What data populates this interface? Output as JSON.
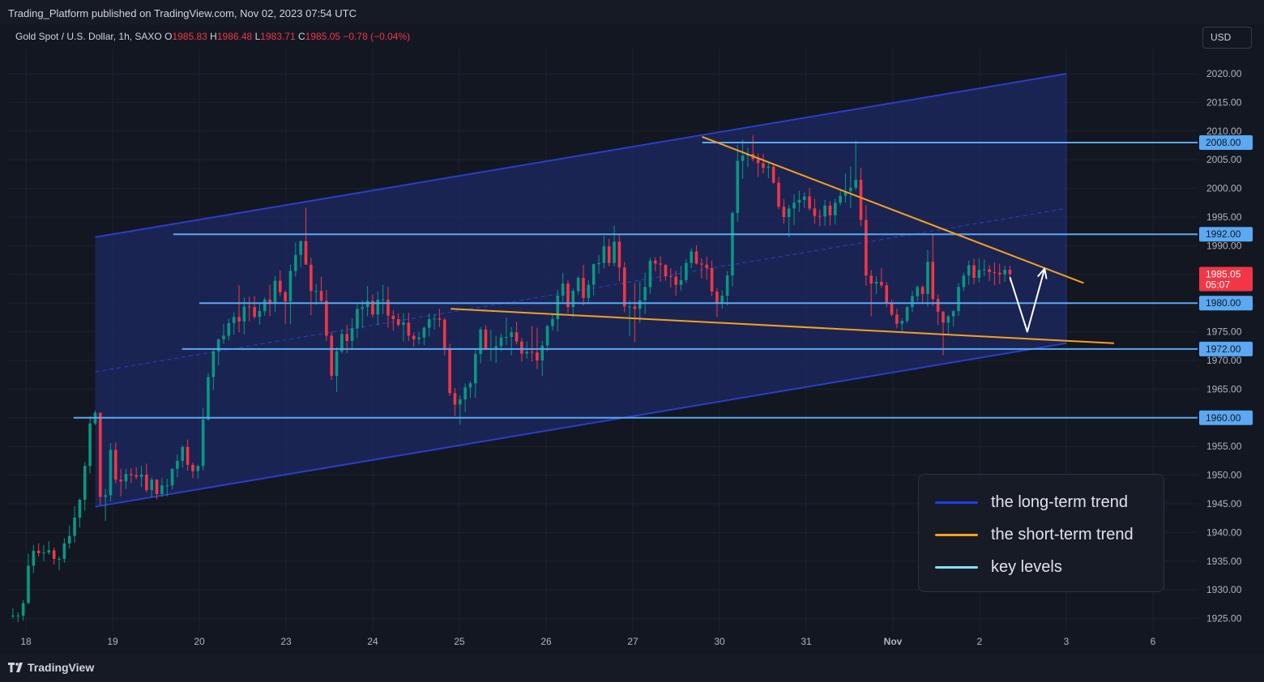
{
  "header": {
    "published": "Trading_Platform published on TradingView.com, Nov 02, 2023 07:54 UTC"
  },
  "symbol": {
    "name": "Gold Spot / U.S. Dollar, 1h, SAXO",
    "o_label": "O",
    "o_value": "1985.83",
    "h_label": "H",
    "h_value": "1986.48",
    "l_label": "L",
    "l_value": "1983.71",
    "c_label": "C",
    "c_value": "1985.05",
    "change": "−0.78 (−0.04%)"
  },
  "currency_button": "USD",
  "footer": {
    "brand": "TradingView"
  },
  "legend": {
    "items": [
      {
        "label": "the long-term trend",
        "color": "#1e3ee6"
      },
      {
        "label": "the short-term trend",
        "color": "#f7a01c"
      },
      {
        "label": "key levels",
        "color": "#7fe4f5"
      }
    ]
  },
  "colors": {
    "up": "#089981",
    "down": "#f23645",
    "channel": "#2a3ec8",
    "channel_fill": "#1d2a66",
    "short_trend": "#f7a01c",
    "key_level": "#5aa9f2",
    "arrow": "#ffffff",
    "price_tag": "#f23645",
    "level_tag": "#5aa9f2"
  },
  "chart_data": {
    "type": "candlestick",
    "instrument": "Gold Spot / U.S. Dollar",
    "timeframe": "1h",
    "ylim": [
      1923,
      2025
    ],
    "y_ticks": [
      "2020.00",
      "2015.00",
      "2010.00",
      "2005.00",
      "2000.00",
      "1995.00",
      "1990.00",
      "1985.00",
      "1980.00",
      "1975.00",
      "1970.00",
      "1965.00",
      "1960.00",
      "1955.00",
      "1950.00",
      "1945.00",
      "1940.00",
      "1935.00",
      "1930.00",
      "1925.00"
    ],
    "x_ticks": [
      {
        "label": "18",
        "day": 0
      },
      {
        "label": "19",
        "day": 1
      },
      {
        "label": "20",
        "day": 2
      },
      {
        "label": "23",
        "day": 3
      },
      {
        "label": "24",
        "day": 4
      },
      {
        "label": "25",
        "day": 5
      },
      {
        "label": "26",
        "day": 6
      },
      {
        "label": "27",
        "day": 7
      },
      {
        "label": "30",
        "day": 8
      },
      {
        "label": "31",
        "day": 9
      },
      {
        "label": "Nov",
        "day": 10
      },
      {
        "label": "2",
        "day": 11
      },
      {
        "label": "3",
        "day": 12
      },
      {
        "label": "6",
        "day": 13
      }
    ],
    "key_levels": [
      {
        "value": 2008.0,
        "label": "2008.00",
        "from_day": 7.8
      },
      {
        "value": 1992.0,
        "label": "1992.00",
        "from_day": 1.7
      },
      {
        "value": 1980.0,
        "label": "1980.00",
        "from_day": 2.0
      },
      {
        "value": 1972.0,
        "label": "1972.00",
        "from_day": 1.8
      },
      {
        "value": 1960.0,
        "label": "1960.00",
        "from_day": 0.55
      }
    ],
    "last_price": {
      "value": 1985.05,
      "label": "1985.05",
      "countdown": "05:07"
    },
    "long_term_channel": {
      "upper": [
        [
          0.8,
          1991.5
        ],
        [
          12.0,
          2020.0
        ]
      ],
      "lower": [
        [
          0.8,
          1944.5
        ],
        [
          12.0,
          1973.0
        ]
      ],
      "mid": [
        [
          0.8,
          1968.0
        ],
        [
          12.0,
          1996.5
        ]
      ]
    },
    "short_term_trend": {
      "upper": [
        [
          7.8,
          2009.0
        ],
        [
          12.2,
          1983.5
        ]
      ],
      "lower": [
        [
          4.9,
          1979.0
        ],
        [
          12.55,
          1973.0
        ]
      ]
    },
    "projection_arrow": [
      [
        11.35,
        1984.5
      ],
      [
        11.55,
        1975.0
      ],
      [
        11.75,
        1986.0
      ]
    ],
    "candles": [
      [
        1925.5,
        1926.8,
        1925.0,
        1925.5
      ],
      [
        1925.5,
        1926.1,
        1924.4,
        1925.5
      ],
      [
        1925.5,
        1928.2,
        1924.6,
        1927.7
      ],
      [
        1927.7,
        1936.3,
        1927.5,
        1934.2
      ],
      [
        1934.2,
        1937.8,
        1932.9,
        1936.8
      ],
      [
        1936.8,
        1938.1,
        1935.8,
        1936.4
      ],
      [
        1936.4,
        1937.8,
        1935.0,
        1936.5
      ],
      [
        1936.5,
        1938.5,
        1936.1,
        1936.9
      ],
      [
        1936.9,
        1937.4,
        1934.4,
        1935.4
      ],
      [
        1935.4,
        1935.8,
        1933.4,
        1935.4
      ],
      [
        1935.4,
        1939.0,
        1934.7,
        1938.1
      ],
      [
        1938.1,
        1941.2,
        1937.2,
        1939.4
      ],
      [
        1939.4,
        1944.6,
        1938.2,
        1942.6
      ],
      [
        1942.6,
        1945.9,
        1940.9,
        1945.7
      ],
      [
        1945.7,
        1952.3,
        1943.8,
        1951.6
      ],
      [
        1951.6,
        1960.3,
        1950.3,
        1959.0
      ],
      [
        1959.0,
        1961.3,
        1958.7,
        1960.9
      ],
      [
        1960.9,
        1960.2,
        1944.8,
        1946.2
      ],
      [
        1946.2,
        1947.6,
        1942.0,
        1946.5
      ],
      [
        1946.5,
        1955.6,
        1945.4,
        1954.4
      ],
      [
        1954.4,
        1955.7,
        1948.6,
        1949.2
      ],
      [
        1949.2,
        1951.1,
        1946.3,
        1948.9
      ],
      [
        1948.9,
        1951.1,
        1947.6,
        1950.2
      ],
      [
        1950.2,
        1951.2,
        1948.6,
        1950.0
      ],
      [
        1950.0,
        1951.4,
        1949.3,
        1949.7
      ],
      [
        1949.7,
        1951.6,
        1947.9,
        1950.1
      ],
      [
        1950.1,
        1952.0,
        1947.0,
        1947.4
      ],
      [
        1947.4,
        1949.6,
        1946.2,
        1949.2
      ],
      [
        1949.2,
        1949.3,
        1945.8,
        1946.7
      ],
      [
        1946.7,
        1949.5,
        1946.2,
        1948.2
      ],
      [
        1948.2,
        1949.4,
        1946.3,
        1948.2
      ],
      [
        1948.2,
        1951.2,
        1947.5,
        1951.1
      ],
      [
        1951.1,
        1953.6,
        1949.6,
        1952.5
      ],
      [
        1952.5,
        1955.2,
        1951.3,
        1954.9
      ],
      [
        1954.9,
        1956.2,
        1950.8,
        1951.8
      ],
      [
        1951.8,
        1952.2,
        1949.5,
        1950.7
      ],
      [
        1950.7,
        1951.8,
        1949.4,
        1951.6
      ],
      [
        1951.6,
        1961.7,
        1950.8,
        1959.7
      ],
      [
        1959.7,
        1967.8,
        1959.5,
        1967.1
      ],
      [
        1967.1,
        1971.8,
        1964.9,
        1971.6
      ],
      [
        1971.6,
        1973.8,
        1969.2,
        1973.7
      ],
      [
        1973.7,
        1976.4,
        1972.9,
        1974.3
      ],
      [
        1974.3,
        1977.3,
        1973.5,
        1976.5
      ],
      [
        1976.5,
        1978.4,
        1974.5,
        1977.6
      ],
      [
        1977.6,
        1983.1,
        1974.9,
        1976.8
      ],
      [
        1976.8,
        1981.0,
        1974.6,
        1979.4
      ],
      [
        1979.4,
        1981.1,
        1976.8,
        1979.3
      ],
      [
        1979.3,
        1981.2,
        1977.2,
        1977.6
      ],
      [
        1977.6,
        1980.0,
        1976.2,
        1978.6
      ],
      [
        1978.6,
        1981.0,
        1977.8,
        1980.6
      ],
      [
        1980.6,
        1983.2,
        1977.7,
        1980.0
      ],
      [
        1980.0,
        1984.7,
        1978.4,
        1983.9
      ],
      [
        1983.9,
        1985.7,
        1981.2,
        1981.9
      ],
      [
        1981.9,
        1982.2,
        1976.4,
        1980.3
      ],
      [
        1980.3,
        1986.7,
        1976.3,
        1985.6
      ],
      [
        1985.6,
        1990.6,
        1984.6,
        1988.4
      ],
      [
        1988.4,
        1990.9,
        1986.2,
        1990.8
      ],
      [
        1990.8,
        1996.6,
        1986.9,
        1986.7
      ],
      [
        1986.7,
        1987.9,
        1977.9,
        1982.1
      ],
      [
        1982.1,
        1983.3,
        1979.7,
        1982.1
      ],
      [
        1982.1,
        1984.6,
        1979.9,
        1980.4
      ],
      [
        1980.4,
        1982.3,
        1973.4,
        1974.3
      ],
      [
        1974.3,
        1975.0,
        1966.6,
        1967.3
      ],
      [
        1967.3,
        1972.3,
        1964.5,
        1971.6
      ],
      [
        1971.6,
        1975.4,
        1971.2,
        1974.6
      ],
      [
        1974.6,
        1976.2,
        1971.3,
        1973.4
      ],
      [
        1973.4,
        1977.3,
        1971.8,
        1975.6
      ],
      [
        1975.6,
        1979.8,
        1973.9,
        1979.0
      ],
      [
        1979.0,
        1980.5,
        1975.6,
        1979.3
      ],
      [
        1979.3,
        1983.0,
        1977.7,
        1980.4
      ],
      [
        1980.4,
        1981.5,
        1977.5,
        1978.0
      ],
      [
        1978.0,
        1982.0,
        1976.2,
        1980.6
      ],
      [
        1980.6,
        1983.2,
        1978.1,
        1980.6
      ],
      [
        1980.6,
        1982.8,
        1975.7,
        1977.8
      ],
      [
        1977.8,
        1978.8,
        1975.2,
        1977.2
      ],
      [
        1977.2,
        1978.2,
        1975.9,
        1976.2
      ],
      [
        1976.2,
        1978.2,
        1973.3,
        1976.6
      ],
      [
        1976.6,
        1978.3,
        1973.4,
        1974.3
      ],
      [
        1974.3,
        1974.9,
        1972.4,
        1973.7
      ],
      [
        1973.7,
        1975.0,
        1972.8,
        1974.0
      ],
      [
        1974.0,
        1975.9,
        1972.7,
        1975.7
      ],
      [
        1975.7,
        1978.2,
        1974.2,
        1977.2
      ],
      [
        1977.2,
        1978.1,
        1975.4,
        1977.3
      ],
      [
        1977.3,
        1979.0,
        1975.8,
        1977.1
      ],
      [
        1977.1,
        1977.4,
        1970.9,
        1972.1
      ],
      [
        1972.1,
        1972.9,
        1963.8,
        1964.3
      ],
      [
        1964.3,
        1965.2,
        1960.3,
        1962.3
      ],
      [
        1962.3,
        1963.9,
        1958.8,
        1963.2
      ],
      [
        1963.2,
        1966.0,
        1961.0,
        1965.3
      ],
      [
        1965.3,
        1966.4,
        1963.4,
        1966.0
      ],
      [
        1966.0,
        1971.8,
        1963.5,
        1971.1
      ],
      [
        1971.1,
        1975.8,
        1969.5,
        1975.4
      ],
      [
        1975.4,
        1976.1,
        1971.9,
        1972.1
      ],
      [
        1972.1,
        1975.3,
        1969.9,
        1972.1
      ],
      [
        1972.1,
        1974.3,
        1969.6,
        1972.5
      ],
      [
        1972.5,
        1974.7,
        1971.6,
        1974.0
      ],
      [
        1974.0,
        1977.5,
        1972.7,
        1974.1
      ],
      [
        1974.1,
        1975.8,
        1970.9,
        1974.9
      ],
      [
        1974.9,
        1976.7,
        1972.8,
        1973.3
      ],
      [
        1973.3,
        1973.9,
        1969.8,
        1971.2
      ],
      [
        1971.2,
        1973.3,
        1970.3,
        1971.5
      ],
      [
        1971.5,
        1976.0,
        1969.8,
        1971.4
      ],
      [
        1971.4,
        1975.7,
        1968.5,
        1970.0
      ],
      [
        1970.0,
        1973.4,
        1967.3,
        1972.6
      ],
      [
        1972.6,
        1976.2,
        1971.6,
        1976.0
      ],
      [
        1976.0,
        1978.2,
        1975.2,
        1977.2
      ],
      [
        1977.2,
        1982.3,
        1975.1,
        1981.3
      ],
      [
        1981.3,
        1985.3,
        1980.2,
        1983.4
      ],
      [
        1983.4,
        1984.0,
        1978.3,
        1979.3
      ],
      [
        1979.3,
        1982.5,
        1977.5,
        1982.1
      ],
      [
        1982.1,
        1984.7,
        1981.5,
        1984.4
      ],
      [
        1984.4,
        1986.7,
        1979.6,
        1980.9
      ],
      [
        1980.9,
        1984.0,
        1979.8,
        1983.2
      ],
      [
        1983.2,
        1986.9,
        1981.3,
        1986.8
      ],
      [
        1986.8,
        1988.4,
        1985.1,
        1987.0
      ],
      [
        1987.0,
        1991.7,
        1986.0,
        1989.9
      ],
      [
        1989.9,
        1991.2,
        1986.4,
        1987.0
      ],
      [
        1987.0,
        1993.5,
        1986.4,
        1990.7
      ],
      [
        1990.7,
        1992.0,
        1983.8,
        1986.2
      ],
      [
        1986.2,
        1987.2,
        1978.4,
        1979.4
      ],
      [
        1979.4,
        1980.5,
        1974.2,
        1979.4
      ],
      [
        1979.4,
        1983.5,
        1973.2,
        1979.0
      ],
      [
        1979.0,
        1983.8,
        1976.5,
        1980.5
      ],
      [
        1980.5,
        1985.3,
        1978.1,
        1982.8
      ],
      [
        1982.8,
        1987.9,
        1981.6,
        1987.4
      ],
      [
        1987.4,
        1988.0,
        1985.5,
        1986.9
      ],
      [
        1986.9,
        1988.2,
        1983.7,
        1986.7
      ],
      [
        1986.7,
        1986.6,
        1983.9,
        1984.7
      ],
      [
        1984.7,
        1986.1,
        1982.7,
        1984.6
      ],
      [
        1984.6,
        1985.6,
        1981.3,
        1983.2
      ],
      [
        1983.2,
        1986.5,
        1982.2,
        1984.0
      ],
      [
        1984.0,
        1987.7,
        1983.5,
        1987.0
      ],
      [
        1987.0,
        1989.6,
        1986.1,
        1989.0
      ],
      [
        1989.0,
        1990.1,
        1986.7,
        1986.9
      ],
      [
        1986.9,
        1987.8,
        1984.3,
        1986.7
      ],
      [
        1986.7,
        1988.1,
        1984.1,
        1986.1
      ],
      [
        1986.1,
        1987.4,
        1981.2,
        1982.0
      ],
      [
        1982.0,
        1982.6,
        1977.6,
        1980.1
      ],
      [
        1980.1,
        1982.2,
        1979.0,
        1981.3
      ],
      [
        1981.3,
        1985.6,
        1979.6,
        1984.8
      ],
      [
        1984.8,
        1996.0,
        1982.9,
        1995.7
      ],
      [
        1995.7,
        2007.6,
        1994.2,
        2004.8
      ],
      [
        2004.8,
        2008.5,
        2001.7,
        2005.7
      ],
      [
        2005.7,
        2007.1,
        2003.7,
        2006.0
      ],
      [
        2006.0,
        2009.2,
        2004.7,
        2005.1
      ],
      [
        2005.1,
        2006.1,
        2002.0,
        2004.4
      ],
      [
        2004.4,
        2006.0,
        2002.6,
        2003.6
      ],
      [
        2003.6,
        2004.4,
        2001.8,
        2003.8
      ],
      [
        2003.8,
        2004.1,
        2000.8,
        2001.0
      ],
      [
        2001.0,
        2002.0,
        1996.4,
        1996.8
      ],
      [
        1996.8,
        1998.1,
        1993.8,
        1995.0
      ],
      [
        1995.0,
        1997.1,
        1991.5,
        1996.5
      ],
      [
        1996.5,
        1999.0,
        1993.6,
        1997.5
      ],
      [
        1997.5,
        1999.6,
        1995.9,
        1998.0
      ],
      [
        1998.0,
        1999.3,
        1996.6,
        1998.6
      ],
      [
        1998.6,
        2000.1,
        1996.1,
        1996.5
      ],
      [
        1996.5,
        1998.2,
        1993.8,
        1995.2
      ],
      [
        1995.2,
        1996.3,
        1993.4,
        1995.1
      ],
      [
        1995.1,
        1998.0,
        1993.5,
        1997.0
      ],
      [
        1997.0,
        1997.8,
        1993.5,
        1995.3
      ],
      [
        1995.3,
        1998.2,
        1993.7,
        1997.5
      ],
      [
        1997.5,
        1999.8,
        1997.0,
        1998.7
      ],
      [
        1998.7,
        2002.6,
        1997.5,
        1999.5
      ],
      [
        1999.5,
        2003.8,
        1996.6,
        2000.1
      ],
      [
        2000.1,
        2008.3,
        1999.7,
        2001.5
      ],
      [
        2001.5,
        2003.6,
        1993.4,
        1994.5
      ],
      [
        1994.5,
        1997.1,
        1983.0,
        1984.8
      ],
      [
        1984.8,
        1985.8,
        1977.7,
        1983.4
      ],
      [
        1983.4,
        1984.7,
        1981.6,
        1983.7
      ],
      [
        1983.7,
        1986.1,
        1982.7,
        1983.1
      ],
      [
        1983.1,
        1983.7,
        1979.3,
        1980.0
      ],
      [
        1980.0,
        1980.6,
        1977.7,
        1978.0
      ],
      [
        1978.0,
        1979.0,
        1975.6,
        1976.4
      ],
      [
        1976.4,
        1977.3,
        1974.9,
        1976.9
      ],
      [
        1976.9,
        1979.5,
        1976.5,
        1979.3
      ],
      [
        1979.3,
        1982.1,
        1978.4,
        1981.2
      ],
      [
        1981.2,
        1983.1,
        1980.3,
        1982.8
      ],
      [
        1982.8,
        1983.1,
        1980.1,
        1981.6
      ],
      [
        1981.6,
        1989.3,
        1979.4,
        1987.2
      ],
      [
        1987.2,
        1991.9,
        1979.5,
        1980.7
      ],
      [
        1980.7,
        1981.5,
        1976.2,
        1978.5
      ],
      [
        1978.5,
        1978.6,
        1970.9,
        1976.6
      ],
      [
        1976.6,
        1977.9,
        1974.6,
        1977.7
      ],
      [
        1977.7,
        1978.8,
        1975.9,
        1978.6
      ],
      [
        1978.6,
        1983.5,
        1977.8,
        1982.8
      ],
      [
        1982.8,
        1985.3,
        1982.1,
        1984.8
      ],
      [
        1984.8,
        1987.4,
        1983.2,
        1986.6
      ],
      [
        1986.6,
        1987.7,
        1983.3,
        1984.4
      ],
      [
        1984.4,
        1987.8,
        1983.6,
        1985.8
      ],
      [
        1985.8,
        1987.6,
        1984.7,
        1985.9
      ],
      [
        1985.9,
        1986.6,
        1983.9,
        1985.4
      ],
      [
        1985.4,
        1987.1,
        1983.1,
        1985.3
      ],
      [
        1985.3,
        1986.9,
        1983.3,
        1985.0
      ],
      [
        1985.0,
        1986.5,
        1983.7,
        1985.8
      ],
      [
        1985.8,
        1986.5,
        1983.7,
        1985.05
      ]
    ]
  }
}
